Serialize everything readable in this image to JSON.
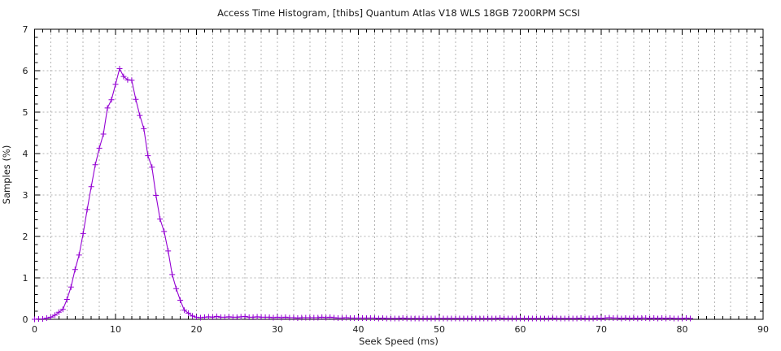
{
  "figure": {
    "background": "#ffffff",
    "border_color": "#000000",
    "grid_color": "#b3b3b3",
    "text_color": "#1a1a1a"
  },
  "chart_data": {
    "type": "line",
    "title": "Access Time Histogram, [thibs] Quantum Atlas V18 WLS 18GB 7200RPM SCSI",
    "xlabel": "Seek Speed (ms)",
    "ylabel": "Samples (%)",
    "xlim": [
      0,
      90
    ],
    "ylim": [
      0,
      7
    ],
    "x_major_ticks": [
      0,
      10,
      20,
      30,
      40,
      50,
      60,
      70,
      80,
      90
    ],
    "y_major_ticks": [
      0,
      1,
      2,
      3,
      4,
      5,
      6,
      7
    ],
    "x_minor_interval": 1,
    "y_minor_interval": 0.2,
    "grid": {
      "on": true,
      "x_interval": 2,
      "y_interval": 1,
      "style": "dashed"
    },
    "legend": {
      "visible": false
    },
    "series": [
      {
        "name": "samples",
        "color": "#9400d3",
        "marker": "plus",
        "x": [
          0,
          0.5,
          1,
          1.5,
          2,
          2.5,
          3,
          3.5,
          4,
          4.5,
          5,
          5.5,
          6,
          6.5,
          7,
          7.5,
          8,
          8.5,
          9,
          9.5,
          10,
          10.5,
          11,
          11.5,
          12,
          12.5,
          13,
          13.5,
          14,
          14.5,
          15,
          15.5,
          16,
          16.5,
          17,
          17.5,
          18,
          18.5,
          19,
          19.5,
          20,
          20.5,
          21,
          21.5,
          22,
          22.5,
          23,
          23.5,
          24,
          24.5,
          25,
          25.5,
          26,
          26.5,
          27,
          27.5,
          28,
          28.5,
          29,
          29.5,
          30,
          30.5,
          31,
          31.5,
          32,
          32.5,
          33,
          33.5,
          34,
          34.5,
          35,
          35.5,
          36,
          36.5,
          37,
          37.5,
          38,
          38.5,
          39,
          39.5,
          40,
          40.5,
          41,
          41.5,
          42,
          42.5,
          43,
          43.5,
          44,
          44.5,
          45,
          45.5,
          46,
          46.5,
          47,
          47.5,
          48,
          48.5,
          49,
          49.5,
          50,
          50.5,
          51,
          51.5,
          52,
          52.5,
          53,
          53.5,
          54,
          54.5,
          55,
          55.5,
          56,
          56.5,
          57,
          57.5,
          58,
          58.5,
          59,
          59.5,
          60,
          60.5,
          61,
          61.5,
          62,
          62.5,
          63,
          63.5,
          64,
          64.5,
          65,
          65.5,
          66,
          66.5,
          67,
          67.5,
          68,
          68.5,
          69,
          69.5,
          70,
          70.5,
          71,
          71.5,
          72,
          72.5,
          73,
          73.5,
          74,
          74.5,
          75,
          75.5,
          76,
          76.5,
          77,
          77.5,
          78,
          78.5,
          79,
          79.5,
          80,
          80.5,
          81
        ],
        "y": [
          0,
          0.01,
          0.01,
          0.03,
          0.05,
          0.1,
          0.17,
          0.24,
          0.48,
          0.78,
          1.2,
          1.55,
          2.07,
          2.65,
          3.2,
          3.73,
          4.13,
          4.47,
          5.1,
          5.3,
          5.67,
          6.05,
          5.86,
          5.78,
          5.77,
          5.31,
          4.92,
          4.6,
          3.95,
          3.67,
          2.99,
          2.42,
          2.12,
          1.65,
          1.08,
          0.74,
          0.46,
          0.22,
          0.15,
          0.08,
          0.05,
          0.04,
          0.05,
          0.06,
          0.05,
          0.07,
          0.05,
          0.05,
          0.06,
          0.05,
          0.05,
          0.06,
          0.07,
          0.05,
          0.05,
          0.06,
          0.05,
          0.05,
          0.05,
          0.04,
          0.05,
          0.04,
          0.05,
          0.04,
          0.04,
          0.03,
          0.04,
          0.04,
          0.04,
          0.04,
          0.04,
          0.05,
          0.04,
          0.05,
          0.04,
          0.03,
          0.03,
          0.04,
          0.03,
          0.03,
          0.03,
          0.03,
          0.03,
          0.03,
          0.03,
          0.02,
          0.03,
          0.02,
          0.02,
          0.02,
          0.02,
          0.03,
          0.02,
          0.02,
          0.02,
          0.02,
          0.02,
          0.02,
          0.02,
          0.02,
          0.02,
          0.02,
          0.02,
          0.02,
          0.02,
          0.02,
          0.02,
          0.02,
          0.02,
          0.02,
          0.02,
          0.02,
          0.02,
          0.02,
          0.02,
          0.03,
          0.02,
          0.02,
          0.02,
          0.02,
          0.02,
          0.02,
          0.02,
          0.02,
          0.02,
          0.02,
          0.02,
          0.02,
          0.03,
          0.02,
          0.02,
          0.02,
          0.02,
          0.02,
          0.02,
          0.03,
          0.02,
          0.02,
          0.02,
          0.03,
          0.02,
          0.03,
          0.04,
          0.03,
          0.03,
          0.02,
          0.03,
          0.02,
          0.03,
          0.02,
          0.03,
          0.03,
          0.02,
          0.03,
          0.02,
          0.03,
          0.02,
          0.03,
          0.02,
          0.02,
          0.02,
          0.03,
          0.02
        ]
      }
    ]
  }
}
